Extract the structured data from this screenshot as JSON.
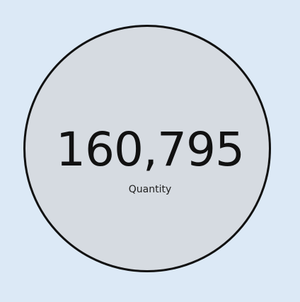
{
  "kpi": {
    "value": "160,795",
    "label": "Quantity"
  },
  "colors": {
    "background": "#dce9f6",
    "circle_fill": "#d6dbe1",
    "circle_border": "#111111",
    "text": "#111111"
  }
}
